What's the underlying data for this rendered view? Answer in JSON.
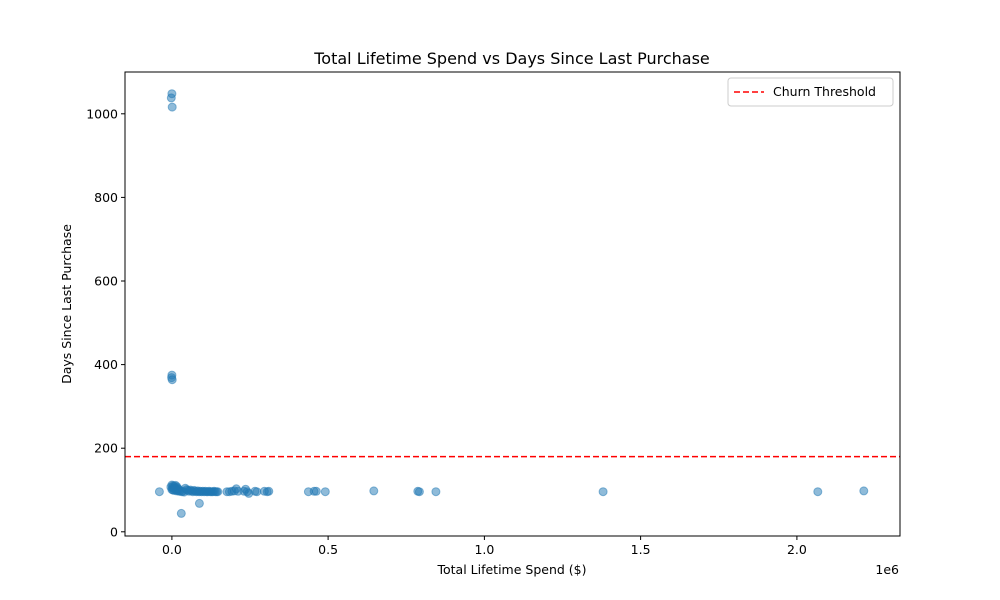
{
  "chart_data": {
    "type": "scatter",
    "title": "Total Lifetime Spend vs Days Since Last Purchase",
    "xlabel": "Total Lifetime Spend ($)",
    "ylabel": "Days Since Last Purchase",
    "x_offset_label": "1e6",
    "xlim": [
      -150000,
      2330000
    ],
    "ylim": [
      -10,
      1100
    ],
    "x_ticks": [
      0,
      500000,
      1000000,
      1500000,
      2000000
    ],
    "x_tick_labels": [
      "0.0",
      "0.5",
      "1.0",
      "1.5",
      "2.0"
    ],
    "y_ticks": [
      0,
      200,
      400,
      600,
      800,
      1000
    ],
    "y_tick_labels": [
      "0",
      "200",
      "400",
      "600",
      "800",
      "1000"
    ],
    "grid": false,
    "legend": {
      "position": "top-right",
      "entries": [
        {
          "label": "Churn Threshold",
          "style": "dashed-line",
          "color": "#ff0000"
        }
      ]
    },
    "threshold": {
      "name": "Churn Threshold",
      "y": 180,
      "color": "#ff0000"
    },
    "point_color": "#1f77b4",
    "point_alpha": 0.5,
    "series": [
      {
        "points": [
          [
            -40000,
            96
          ],
          [
            0,
            1048
          ],
          [
            -2000,
            1038
          ],
          [
            1000,
            1016
          ],
          [
            0,
            375
          ],
          [
            -1000,
            369
          ],
          [
            1000,
            364
          ],
          [
            0,
            112
          ],
          [
            4000,
            110
          ],
          [
            8000,
            109
          ],
          [
            12000,
            111
          ],
          [
            16000,
            108
          ],
          [
            -3000,
            107
          ],
          [
            2000,
            105
          ],
          [
            6000,
            104
          ],
          [
            10000,
            106
          ],
          [
            14000,
            103
          ],
          [
            18000,
            104
          ],
          [
            22000,
            102
          ],
          [
            0,
            101
          ],
          [
            3000,
            100
          ],
          [
            7000,
            99
          ],
          [
            11000,
            101
          ],
          [
            15000,
            98
          ],
          [
            19000,
            99
          ],
          [
            23000,
            97
          ],
          [
            27000,
            98
          ],
          [
            31000,
            96
          ],
          [
            35000,
            97
          ],
          [
            39000,
            95
          ],
          [
            43000,
            104
          ],
          [
            47000,
            101
          ],
          [
            51000,
            99
          ],
          [
            55000,
            97
          ],
          [
            59000,
            100
          ],
          [
            63000,
            98
          ],
          [
            67000,
            96
          ],
          [
            71000,
            99
          ],
          [
            75000,
            97
          ],
          [
            79000,
            96
          ],
          [
            83000,
            98
          ],
          [
            87000,
            96
          ],
          [
            91000,
            97
          ],
          [
            95000,
            96
          ],
          [
            99000,
            97
          ],
          [
            103000,
            96
          ],
          [
            107000,
            97
          ],
          [
            111000,
            96
          ],
          [
            115000,
            96
          ],
          [
            119000,
            97
          ],
          [
            123000,
            96
          ],
          [
            127000,
            96
          ],
          [
            131000,
            96
          ],
          [
            135000,
            97
          ],
          [
            139000,
            96
          ],
          [
            143000,
            96
          ],
          [
            147000,
            96
          ],
          [
            176000,
            96
          ],
          [
            184000,
            96
          ],
          [
            192000,
            97
          ],
          [
            200000,
            98
          ],
          [
            206000,
            103
          ],
          [
            212000,
            97
          ],
          [
            231000,
            97
          ],
          [
            236000,
            102
          ],
          [
            241000,
            96
          ],
          [
            246000,
            92
          ],
          [
            266000,
            97
          ],
          [
            272000,
            96
          ],
          [
            296000,
            97
          ],
          [
            305000,
            96
          ],
          [
            310000,
            97
          ],
          [
            30000,
            44
          ],
          [
            88000,
            68
          ],
          [
            437000,
            96
          ],
          [
            455000,
            97
          ],
          [
            462000,
            97
          ],
          [
            491000,
            96
          ],
          [
            646000,
            98
          ],
          [
            787000,
            97
          ],
          [
            792000,
            96
          ],
          [
            845000,
            96
          ],
          [
            1380000,
            96
          ],
          [
            2067000,
            96
          ],
          [
            2214000,
            98
          ]
        ]
      }
    ]
  }
}
